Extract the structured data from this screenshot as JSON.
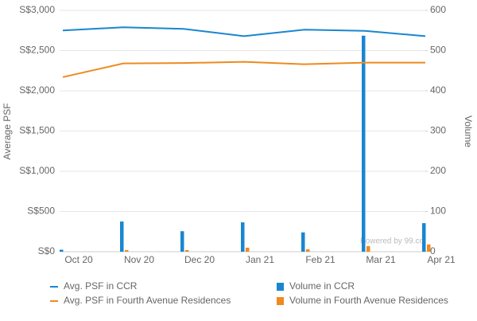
{
  "chart_data": {
    "type": "combo",
    "y_label": "Average PSF",
    "y2_label": "Volume",
    "watermark": "Powered by 99.co",
    "categories": [
      "Oct 20",
      "Nov 20",
      "Dec 20",
      "Jan 21",
      "Feb 21",
      "Mar 21",
      "Apr 21"
    ],
    "ylim": [
      0,
      3000
    ],
    "yticks": [
      {
        "value": 0,
        "label": "S$0"
      },
      {
        "value": 500,
        "label": "S$500"
      },
      {
        "value": 1000,
        "label": "S$1,000"
      },
      {
        "value": 1500,
        "label": "S$1,500"
      },
      {
        "value": 2000,
        "label": "S$2,000"
      },
      {
        "value": 2500,
        "label": "S$2,500"
      },
      {
        "value": 3000,
        "label": "S$3,000"
      }
    ],
    "y2lim": [
      0,
      600
    ],
    "y2ticks": [
      0,
      100,
      200,
      300,
      400,
      500,
      600
    ],
    "grid": true,
    "series": [
      {
        "name": "Avg. PSF in CCR",
        "type": "line",
        "color": "#1a86d0",
        "values": [
          2750,
          2790,
          2770,
          2680,
          2760,
          2745,
          2680
        ]
      },
      {
        "name": "Avg. PSF in Fourth Avenue Residences",
        "type": "line",
        "color": "#ee8a1f",
        "values": [
          2170,
          2340,
          2345,
          2360,
          2330,
          2350,
          2350
        ]
      },
      {
        "name": "Volume in CCR",
        "type": "bar",
        "axis": "y2",
        "color": "#1a86d0",
        "values": [
          5,
          75,
          51,
          73,
          48,
          537,
          71
        ]
      },
      {
        "name": "Volume in Fourth Avenue Residences",
        "type": "bar",
        "axis": "y2",
        "color": "#ee8a1f",
        "values": [
          0,
          4,
          4,
          10,
          6,
          14,
          18
        ]
      }
    ]
  }
}
